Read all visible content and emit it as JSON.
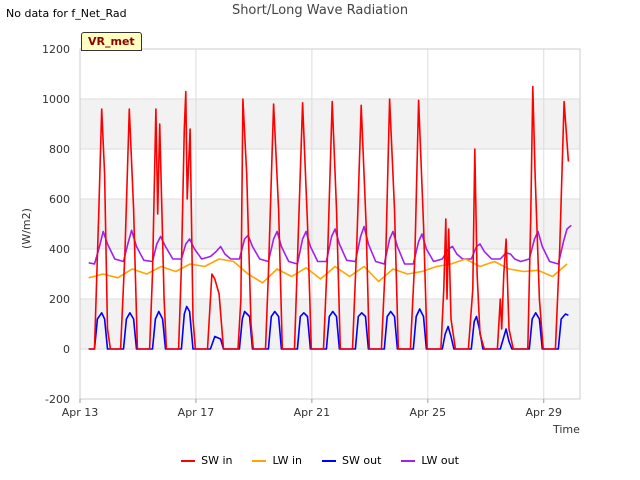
{
  "header": {
    "no_data": "No data for f_Net_Rad",
    "title": "Short/Long Wave Radiation"
  },
  "badge": "VR_met",
  "chart_data": {
    "type": "line",
    "title": "Short/Long Wave Radiation",
    "xlabel": "Time",
    "ylabel": "(W/m2)",
    "ylim": [
      -200,
      1200
    ],
    "yticks": [
      -200,
      0,
      200,
      400,
      600,
      800,
      1000,
      1200
    ],
    "xlim": [
      13.0,
      30.25
    ],
    "xticks": [
      {
        "day": 13,
        "label": "Apr 13"
      },
      {
        "day": 17,
        "label": "Apr 17"
      },
      {
        "day": 21,
        "label": "Apr 21"
      },
      {
        "day": 25,
        "label": "Apr 25"
      },
      {
        "day": 29,
        "label": "Apr 29"
      }
    ],
    "grid": true,
    "legend": "bottom",
    "colors": {
      "SW in": "#ff0000",
      "LW in": "#ffa500",
      "SW out": "#0000ff",
      "LW out": "#a020f0"
    },
    "series": [
      {
        "name": "SW in",
        "points": [
          [
            13.3,
            0
          ],
          [
            13.5,
            0
          ],
          [
            13.65,
            550
          ],
          [
            13.75,
            960
          ],
          [
            13.85,
            700
          ],
          [
            13.95,
            80
          ],
          [
            14.05,
            0
          ],
          [
            14.4,
            0
          ],
          [
            14.55,
            380
          ],
          [
            14.7,
            960
          ],
          [
            14.85,
            560
          ],
          [
            14.98,
            0
          ],
          [
            15.4,
            0
          ],
          [
            15.5,
            300
          ],
          [
            15.62,
            960
          ],
          [
            15.68,
            540
          ],
          [
            15.75,
            900
          ],
          [
            15.9,
            200
          ],
          [
            15.98,
            0
          ],
          [
            16.4,
            0
          ],
          [
            16.5,
            330
          ],
          [
            16.6,
            880
          ],
          [
            16.65,
            1030
          ],
          [
            16.7,
            600
          ],
          [
            16.8,
            880
          ],
          [
            16.9,
            120
          ],
          [
            16.98,
            0
          ],
          [
            17.4,
            0
          ],
          [
            17.55,
            300
          ],
          [
            17.65,
            280
          ],
          [
            17.8,
            220
          ],
          [
            17.95,
            0
          ],
          [
            18.45,
            0
          ],
          [
            18.55,
            200
          ],
          [
            18.62,
            1000
          ],
          [
            18.75,
            700
          ],
          [
            18.9,
            100
          ],
          [
            18.98,
            0
          ],
          [
            19.4,
            0
          ],
          [
            19.5,
            300
          ],
          [
            19.68,
            980
          ],
          [
            19.85,
            560
          ],
          [
            19.98,
            0
          ],
          [
            20.4,
            0
          ],
          [
            20.5,
            350
          ],
          [
            20.68,
            985
          ],
          [
            20.85,
            500
          ],
          [
            20.98,
            0
          ],
          [
            21.4,
            0
          ],
          [
            21.55,
            400
          ],
          [
            21.7,
            990
          ],
          [
            21.85,
            560
          ],
          [
            21.98,
            0
          ],
          [
            22.4,
            0
          ],
          [
            22.55,
            420
          ],
          [
            22.7,
            975
          ],
          [
            22.87,
            500
          ],
          [
            22.98,
            0
          ],
          [
            23.4,
            0
          ],
          [
            23.55,
            380
          ],
          [
            23.68,
            1000
          ],
          [
            23.85,
            560
          ],
          [
            23.98,
            0
          ],
          [
            24.4,
            0
          ],
          [
            24.55,
            360
          ],
          [
            24.68,
            995
          ],
          [
            24.85,
            500
          ],
          [
            24.98,
            0
          ],
          [
            25.45,
            0
          ],
          [
            25.55,
            240
          ],
          [
            25.62,
            520
          ],
          [
            25.66,
            200
          ],
          [
            25.72,
            480
          ],
          [
            25.8,
            120
          ],
          [
            25.95,
            0
          ],
          [
            26.4,
            0
          ],
          [
            26.55,
            240
          ],
          [
            26.62,
            800
          ],
          [
            26.7,
            300
          ],
          [
            26.8,
            60
          ],
          [
            26.95,
            0
          ],
          [
            27.4,
            0
          ],
          [
            27.5,
            200
          ],
          [
            27.55,
            80
          ],
          [
            27.62,
            300
          ],
          [
            27.7,
            440
          ],
          [
            27.8,
            80
          ],
          [
            27.95,
            0
          ],
          [
            28.45,
            0
          ],
          [
            28.55,
            520
          ],
          [
            28.62,
            1050
          ],
          [
            28.7,
            700
          ],
          [
            28.85,
            200
          ],
          [
            28.98,
            0
          ],
          [
            29.4,
            0
          ],
          [
            29.55,
            400
          ],
          [
            29.7,
            990
          ],
          [
            29.85,
            750
          ]
        ]
      },
      {
        "name": "LW in",
        "points": [
          [
            13.3,
            285
          ],
          [
            13.8,
            300
          ],
          [
            14.3,
            285
          ],
          [
            14.8,
            320
          ],
          [
            15.3,
            300
          ],
          [
            15.8,
            330
          ],
          [
            16.3,
            310
          ],
          [
            16.8,
            340
          ],
          [
            17.3,
            330
          ],
          [
            17.8,
            360
          ],
          [
            18.3,
            350
          ],
          [
            18.8,
            300
          ],
          [
            19.3,
            265
          ],
          [
            19.8,
            320
          ],
          [
            20.3,
            290
          ],
          [
            20.8,
            325
          ],
          [
            21.3,
            280
          ],
          [
            21.8,
            330
          ],
          [
            22.3,
            290
          ],
          [
            22.8,
            330
          ],
          [
            23.3,
            270
          ],
          [
            23.8,
            320
          ],
          [
            24.3,
            300
          ],
          [
            24.8,
            310
          ],
          [
            25.3,
            330
          ],
          [
            25.8,
            340
          ],
          [
            26.3,
            360
          ],
          [
            26.8,
            330
          ],
          [
            27.3,
            350
          ],
          [
            27.8,
            320
          ],
          [
            28.3,
            310
          ],
          [
            28.8,
            315
          ],
          [
            29.3,
            290
          ],
          [
            29.8,
            340
          ]
        ]
      },
      {
        "name": "SW out",
        "points": [
          [
            13.3,
            0
          ],
          [
            13.5,
            0
          ],
          [
            13.6,
            120
          ],
          [
            13.75,
            145
          ],
          [
            13.85,
            120
          ],
          [
            13.95,
            0
          ],
          [
            14.5,
            0
          ],
          [
            14.6,
            120
          ],
          [
            14.72,
            145
          ],
          [
            14.85,
            120
          ],
          [
            14.95,
            0
          ],
          [
            15.5,
            0
          ],
          [
            15.6,
            120
          ],
          [
            15.72,
            150
          ],
          [
            15.85,
            120
          ],
          [
            15.95,
            0
          ],
          [
            16.5,
            0
          ],
          [
            16.6,
            140
          ],
          [
            16.68,
            170
          ],
          [
            16.78,
            150
          ],
          [
            16.9,
            0
          ],
          [
            17.5,
            0
          ],
          [
            17.65,
            50
          ],
          [
            17.85,
            40
          ],
          [
            17.95,
            0
          ],
          [
            18.5,
            0
          ],
          [
            18.6,
            120
          ],
          [
            18.68,
            150
          ],
          [
            18.85,
            130
          ],
          [
            18.95,
            0
          ],
          [
            19.5,
            0
          ],
          [
            19.6,
            130
          ],
          [
            19.72,
            150
          ],
          [
            19.85,
            130
          ],
          [
            19.95,
            0
          ],
          [
            20.5,
            0
          ],
          [
            20.6,
            130
          ],
          [
            20.72,
            145
          ],
          [
            20.85,
            130
          ],
          [
            20.95,
            0
          ],
          [
            21.5,
            0
          ],
          [
            21.6,
            130
          ],
          [
            21.72,
            150
          ],
          [
            21.85,
            130
          ],
          [
            21.95,
            0
          ],
          [
            22.5,
            0
          ],
          [
            22.6,
            130
          ],
          [
            22.72,
            145
          ],
          [
            22.85,
            130
          ],
          [
            22.95,
            0
          ],
          [
            23.5,
            0
          ],
          [
            23.6,
            130
          ],
          [
            23.72,
            150
          ],
          [
            23.85,
            130
          ],
          [
            23.95,
            0
          ],
          [
            24.5,
            0
          ],
          [
            24.6,
            130
          ],
          [
            24.72,
            160
          ],
          [
            24.85,
            130
          ],
          [
            24.95,
            0
          ],
          [
            25.5,
            0
          ],
          [
            25.6,
            60
          ],
          [
            25.7,
            90
          ],
          [
            25.8,
            50
          ],
          [
            25.9,
            0
          ],
          [
            26.5,
            0
          ],
          [
            26.6,
            110
          ],
          [
            26.68,
            130
          ],
          [
            26.78,
            80
          ],
          [
            26.9,
            0
          ],
          [
            27.5,
            0
          ],
          [
            27.6,
            40
          ],
          [
            27.7,
            80
          ],
          [
            27.8,
            30
          ],
          [
            27.9,
            0
          ],
          [
            28.5,
            0
          ],
          [
            28.6,
            120
          ],
          [
            28.72,
            145
          ],
          [
            28.85,
            120
          ],
          [
            28.95,
            0
          ],
          [
            29.5,
            0
          ],
          [
            29.6,
            120
          ],
          [
            29.75,
            140
          ],
          [
            29.85,
            135
          ]
        ]
      },
      {
        "name": "LW out",
        "points": [
          [
            13.3,
            345
          ],
          [
            13.5,
            340
          ],
          [
            13.65,
            400
          ],
          [
            13.8,
            470
          ],
          [
            13.95,
            420
          ],
          [
            14.2,
            360
          ],
          [
            14.5,
            350
          ],
          [
            14.65,
            420
          ],
          [
            14.78,
            475
          ],
          [
            14.95,
            410
          ],
          [
            15.2,
            355
          ],
          [
            15.5,
            350
          ],
          [
            15.65,
            420
          ],
          [
            15.78,
            450
          ],
          [
            15.95,
            410
          ],
          [
            16.2,
            360
          ],
          [
            16.5,
            360
          ],
          [
            16.65,
            420
          ],
          [
            16.78,
            440
          ],
          [
            16.95,
            400
          ],
          [
            17.2,
            360
          ],
          [
            17.5,
            370
          ],
          [
            17.7,
            390
          ],
          [
            17.85,
            410
          ],
          [
            18.0,
            380
          ],
          [
            18.2,
            360
          ],
          [
            18.5,
            360
          ],
          [
            18.68,
            440
          ],
          [
            18.8,
            455
          ],
          [
            18.95,
            410
          ],
          [
            19.2,
            360
          ],
          [
            19.5,
            350
          ],
          [
            19.68,
            440
          ],
          [
            19.8,
            470
          ],
          [
            19.95,
            410
          ],
          [
            20.2,
            350
          ],
          [
            20.5,
            340
          ],
          [
            20.68,
            440
          ],
          [
            20.8,
            470
          ],
          [
            20.95,
            410
          ],
          [
            21.2,
            350
          ],
          [
            21.5,
            350
          ],
          [
            21.68,
            450
          ],
          [
            21.8,
            480
          ],
          [
            21.95,
            420
          ],
          [
            22.2,
            355
          ],
          [
            22.5,
            350
          ],
          [
            22.68,
            450
          ],
          [
            22.8,
            490
          ],
          [
            22.95,
            420
          ],
          [
            23.2,
            350
          ],
          [
            23.5,
            340
          ],
          [
            23.68,
            440
          ],
          [
            23.8,
            470
          ],
          [
            23.95,
            410
          ],
          [
            24.2,
            340
          ],
          [
            24.5,
            340
          ],
          [
            24.68,
            430
          ],
          [
            24.8,
            460
          ],
          [
            24.95,
            400
          ],
          [
            25.2,
            350
          ],
          [
            25.5,
            360
          ],
          [
            25.7,
            400
          ],
          [
            25.85,
            410
          ],
          [
            26.0,
            380
          ],
          [
            26.2,
            360
          ],
          [
            26.5,
            360
          ],
          [
            26.68,
            410
          ],
          [
            26.8,
            420
          ],
          [
            26.95,
            390
          ],
          [
            27.2,
            360
          ],
          [
            27.5,
            360
          ],
          [
            27.7,
            385
          ],
          [
            27.85,
            380
          ],
          [
            28.0,
            360
          ],
          [
            28.2,
            350
          ],
          [
            28.5,
            360
          ],
          [
            28.68,
            440
          ],
          [
            28.8,
            470
          ],
          [
            28.95,
            410
          ],
          [
            29.2,
            350
          ],
          [
            29.5,
            340
          ],
          [
            29.68,
            430
          ],
          [
            29.8,
            480
          ],
          [
            29.95,
            495
          ]
        ]
      }
    ]
  }
}
